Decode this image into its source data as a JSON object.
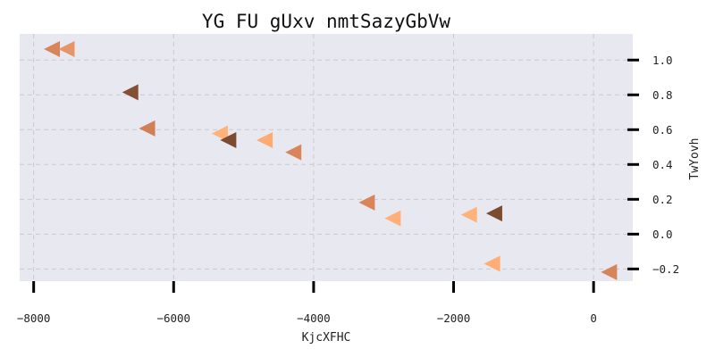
{
  "chart_data": {
    "type": "scatter",
    "title": "YG  FU gUxv nmtSazyGbVw",
    "xlabel": "KjcXFHC",
    "ylabel": "TwYovh",
    "xlim": [
      -8200,
      560
    ],
    "ylim": [
      -0.27,
      1.15
    ],
    "x_ticks": [
      -8000,
      -6000,
      -4000,
      -2000,
      0
    ],
    "x_tick_labels": [
      "−8000",
      "−6000",
      "−4000",
      "−2000",
      "0"
    ],
    "y_ticks": [
      1.0,
      0.8,
      0.6,
      0.4,
      0.2,
      0.0,
      -0.2
    ],
    "y_tick_labels": [
      "1.0",
      "0.8",
      "0.6",
      "0.4",
      "0.2",
      "0.0",
      "−0.2"
    ],
    "y_axis_side": "right",
    "grid": true,
    "background": "#e8e8f0",
    "marker": "triangle-left",
    "points": [
      {
        "x": -7740,
        "y": 1.063,
        "color": "#d9855c"
      },
      {
        "x": -7530,
        "y": 1.063,
        "color": "#e59566"
      },
      {
        "x": -6620,
        "y": 0.815,
        "color": "#844f32"
      },
      {
        "x": -6380,
        "y": 0.607,
        "color": "#d17f55"
      },
      {
        "x": -5340,
        "y": 0.578,
        "color": "#ffb27a"
      },
      {
        "x": -5220,
        "y": 0.54,
        "color": "#7c4a2e"
      },
      {
        "x": -4700,
        "y": 0.54,
        "color": "#ffaa73"
      },
      {
        "x": -4290,
        "y": 0.47,
        "color": "#d9855c"
      },
      {
        "x": -3240,
        "y": 0.182,
        "color": "#d98559"
      },
      {
        "x": -2870,
        "y": 0.091,
        "color": "#ffb07a"
      },
      {
        "x": -1780,
        "y": 0.111,
        "color": "#ffb27a"
      },
      {
        "x": -1420,
        "y": 0.119,
        "color": "#7d4b2f"
      },
      {
        "x": -1450,
        "y": -0.17,
        "color": "#ffad75"
      },
      {
        "x": 220,
        "y": -0.218,
        "color": "#d6845a"
      }
    ]
  }
}
